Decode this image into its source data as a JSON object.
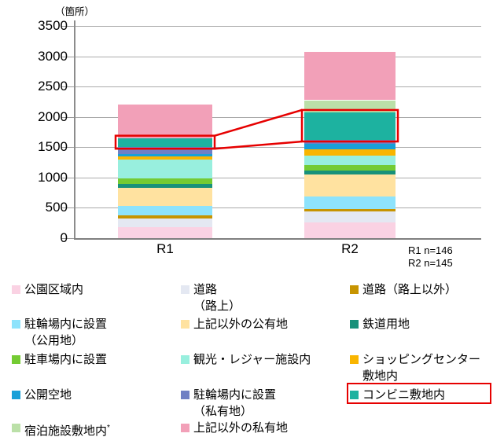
{
  "unit_label": "（箇所）",
  "notes": [
    "R1 n=146",
    "R2 n=145"
  ],
  "chart_data": {
    "type": "bar",
    "stacked": true,
    "title": "",
    "ylabel": "（箇所）",
    "categories": [
      "R1",
      "R2"
    ],
    "y_ticks": [
      "3500",
      "3000",
      "2500",
      "2000",
      "1500",
      "1000",
      "500",
      "0"
    ],
    "ylim": [
      0,
      3500
    ],
    "ytick_interval": 500,
    "grid": true,
    "legend_position": "bottom",
    "highlight_color": "#e60000",
    "totals": [
      2201,
      3075
    ],
    "series": [
      {
        "name": "公園区域内",
        "color": "#fad2e3",
        "values": [
          180,
          255
        ],
        "legend_lines": [
          "公園区域内"
        ]
      },
      {
        "name": "道路（路上）",
        "color": "#e4e8f2",
        "values": [
          146,
          180
        ],
        "legend_lines": [
          "道路",
          "（路上）"
        ]
      },
      {
        "name": "道路（路上以外）",
        "color": "#c79400",
        "values": [
          45,
          45
        ],
        "legend_lines": [
          "道路（路上以外）"
        ]
      },
      {
        "name": "駐輪場内に設置（公用地）",
        "color": "#8ee3fc",
        "values": [
          165,
          210
        ],
        "legend_lines": [
          "駐輪場内に設置",
          "（公用地）"
        ]
      },
      {
        "name": "上記以外の公有地",
        "color": "#ffe2a0",
        "values": [
          290,
          365
        ],
        "legend_lines": [
          "上記以外の公有地"
        ]
      },
      {
        "name": "鉄道用地",
        "color": "#18917a",
        "values": [
          70,
          60
        ],
        "legend_lines": [
          "鉄道用地"
        ]
      },
      {
        "name": "駐車場内に設置",
        "color": "#74cb33",
        "values": [
          95,
          95
        ],
        "legend_lines": [
          "駐車場内に設置"
        ]
      },
      {
        "name": "観光・レジャー施設内",
        "color": "#98efde",
        "values": [
          300,
          150
        ],
        "legend_lines": [
          "観光・レジャー施設内"
        ]
      },
      {
        "name": "ショッピングセンター敷地内",
        "color": "#f9b500",
        "values": [
          55,
          100
        ],
        "legend_lines": [
          "ショッピングセンター",
          "敷地内"
        ]
      },
      {
        "name": "公開空地",
        "color": "#18a0d8",
        "values": [
          45,
          95
        ],
        "legend_lines": [
          "公開空地"
        ]
      },
      {
        "name": "駐輪場内に設置（私有地）",
        "color": "#7080c4",
        "values": [
          110,
          65
        ],
        "legend_lines": [
          "駐輪場内に設置",
          "（私有地）"
        ]
      },
      {
        "name": "コンビニ敷地内",
        "color": "#1db2a0",
        "values": [
          150,
          455
        ],
        "legend_lines": [
          "コンビニ敷地内"
        ],
        "highlighted": true
      },
      {
        "name": "宿泊施設敷地内",
        "color": "#bbe0a8",
        "values": [
          0,
          200
        ],
        "legend_lines": [
          "宿泊施設敷地内"
        ],
        "legend_sup": "*"
      },
      {
        "name": "上記以外の私有地",
        "color": "#f2a0b8",
        "values": [
          550,
          800
        ],
        "legend_lines": [
          "上記以外の私有地"
        ]
      }
    ]
  }
}
